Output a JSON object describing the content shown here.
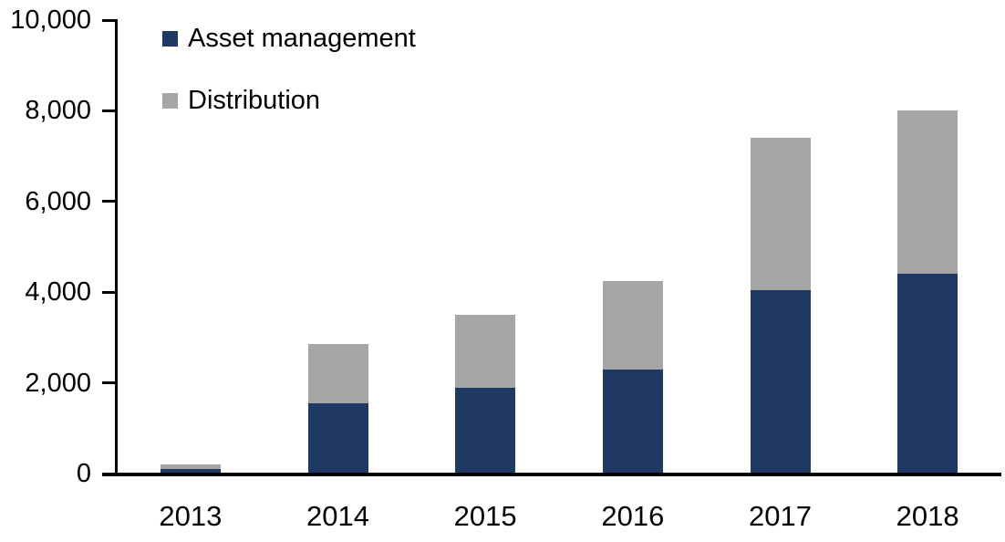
{
  "chart_data": {
    "type": "bar",
    "stacked": true,
    "title": "",
    "xlabel": "",
    "ylabel": "",
    "categories": [
      "2013",
      "2014",
      "2015",
      "2016",
      "2017",
      "2018"
    ],
    "series": [
      {
        "name": "Asset management",
        "color": "#1F3864",
        "values": [
          100,
          1550,
          1900,
          2300,
          4050,
          4400
        ]
      },
      {
        "name": "Distribution",
        "color": "#A6A6A6",
        "values": [
          100,
          1300,
          1600,
          1950,
          3350,
          3600
        ]
      }
    ],
    "totals": [
      200,
      2850,
      3500,
      4250,
      7400,
      8000
    ],
    "ylim": [
      0,
      10000
    ],
    "yticks": [
      0,
      2000,
      4000,
      6000,
      8000,
      10000
    ],
    "ytick_labels": [
      "0",
      "2,000",
      "4,000",
      "6,000",
      "8,000",
      "10,000"
    ],
    "legend": {
      "position": "top-left",
      "entries": [
        "Asset management",
        "Distribution"
      ]
    },
    "grid": false,
    "axis_color": "#000000",
    "background": "#FFFFFF"
  }
}
